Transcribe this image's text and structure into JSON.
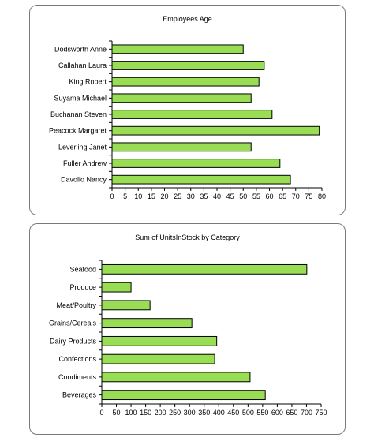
{
  "chart_data": [
    {
      "type": "bar",
      "orientation": "horizontal",
      "title": "Employees Age",
      "categories": [
        "Dodsworth Anne",
        "Callahan Laura",
        "King Robert",
        "Suyama Michael",
        "Buchanan Steven",
        "Peacock Margaret",
        "Leverling Janet",
        "Fuller Andrew",
        "Davolio Nancy"
      ],
      "values": [
        50,
        58,
        56,
        53,
        61,
        79,
        53,
        64,
        68
      ],
      "xlim": [
        0,
        80
      ],
      "xticks": [
        0,
        5,
        10,
        15,
        20,
        25,
        30,
        35,
        40,
        45,
        50,
        55,
        60,
        65,
        70,
        75,
        80
      ],
      "bar_color": "#99dd55",
      "bar_stroke": "#000000",
      "grid": false,
      "legend": "none"
    },
    {
      "type": "bar",
      "orientation": "horizontal",
      "title": "Sum of UnitsInStock by Category",
      "categories": [
        "Seafood",
        "Produce",
        "Meat/Poultry",
        "Grains/Cereals",
        "Dairy Products",
        "Confections",
        "Condiments",
        "Beverages"
      ],
      "values": [
        701,
        100,
        165,
        308,
        393,
        386,
        507,
        559
      ],
      "xlim": [
        0,
        750
      ],
      "xticks": [
        0,
        50,
        100,
        150,
        200,
        250,
        300,
        350,
        400,
        450,
        500,
        550,
        600,
        650,
        700,
        750
      ],
      "bar_color": "#99dd55",
      "bar_stroke": "#000000",
      "grid": false,
      "legend": "none"
    }
  ]
}
